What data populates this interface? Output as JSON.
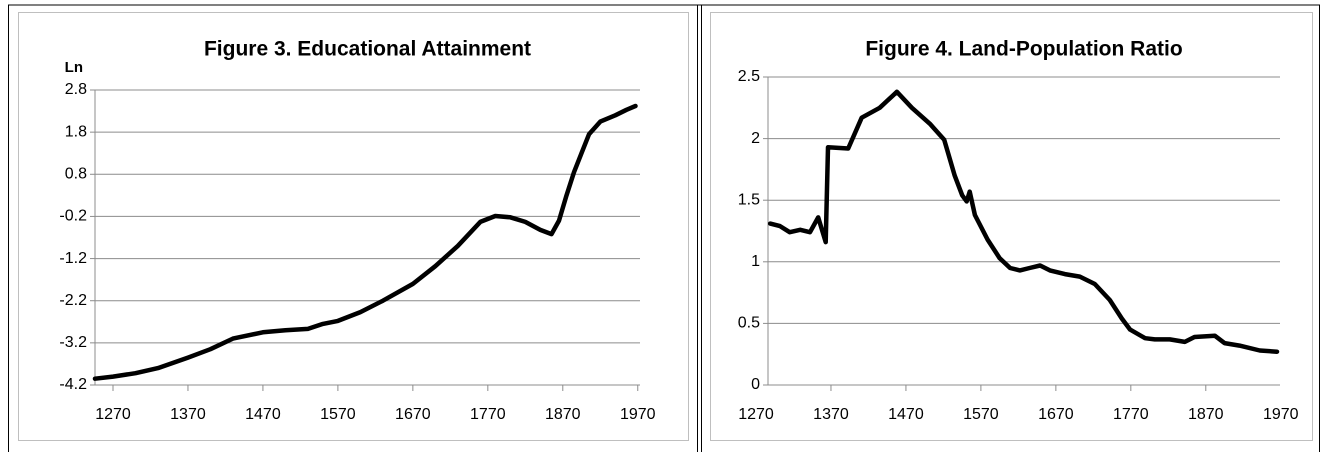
{
  "chart_data": [
    {
      "type": "line",
      "title": "Figure 3. Educational Attainment",
      "ylabel": "Ln",
      "color": "#000000",
      "x": [
        1246,
        1270,
        1300,
        1330,
        1370,
        1400,
        1430,
        1470,
        1500,
        1530,
        1550,
        1570,
        1600,
        1630,
        1670,
        1700,
        1730,
        1760,
        1780,
        1800,
        1820,
        1840,
        1855,
        1865,
        1875,
        1885,
        1895,
        1905,
        1920,
        1940,
        1955,
        1967
      ],
      "values": [
        -4.05,
        -4.0,
        -3.92,
        -3.8,
        -3.55,
        -3.35,
        -3.1,
        -2.95,
        -2.9,
        -2.87,
        -2.75,
        -2.68,
        -2.47,
        -2.2,
        -1.8,
        -1.38,
        -0.9,
        -0.33,
        -0.19,
        -0.22,
        -0.33,
        -0.52,
        -0.62,
        -0.3,
        0.3,
        0.85,
        1.3,
        1.75,
        2.05,
        2.2,
        2.33,
        2.42
      ],
      "xlim": [
        1246,
        1973
      ],
      "xticks": [
        1270,
        1370,
        1470,
        1570,
        1670,
        1770,
        1870,
        1970
      ],
      "ylim": [
        -4.2,
        2.8
      ],
      "yticks": [
        2.8,
        1.8,
        0.8,
        -0.2,
        -1.2,
        -2.2,
        -3.2,
        -4.2
      ],
      "grid": true
    },
    {
      "type": "line",
      "title": "Figure 4. Land-Population Ratio",
      "color": "#000000",
      "x": [
        1289,
        1302,
        1315,
        1329,
        1342,
        1353,
        1363,
        1366,
        1393,
        1411,
        1435,
        1458,
        1478,
        1502,
        1521,
        1535,
        1545,
        1551,
        1555,
        1562,
        1579,
        1595,
        1609,
        1622,
        1635,
        1649,
        1662,
        1682,
        1702,
        1722,
        1742,
        1758,
        1769,
        1789,
        1802,
        1822,
        1842,
        1855,
        1882,
        1895,
        1915,
        1942,
        1965
      ],
      "values": [
        1.31,
        1.29,
        1.24,
        1.26,
        1.24,
        1.36,
        1.16,
        1.93,
        1.92,
        2.17,
        2.25,
        2.38,
        2.25,
        2.12,
        1.99,
        1.7,
        1.54,
        1.49,
        1.57,
        1.38,
        1.18,
        1.03,
        0.95,
        0.93,
        0.95,
        0.97,
        0.93,
        0.9,
        0.88,
        0.82,
        0.69,
        0.54,
        0.45,
        0.38,
        0.37,
        0.37,
        0.35,
        0.39,
        0.4,
        0.34,
        0.32,
        0.28,
        0.27
      ],
      "xlim": [
        1286,
        1969
      ],
      "xticks": [
        1270,
        1370,
        1470,
        1570,
        1670,
        1770,
        1870,
        1970
      ],
      "ylim": [
        0,
        2.5
      ],
      "yticks": [
        2.5,
        2,
        1.5,
        1,
        0.5,
        0
      ],
      "grid": true
    }
  ]
}
